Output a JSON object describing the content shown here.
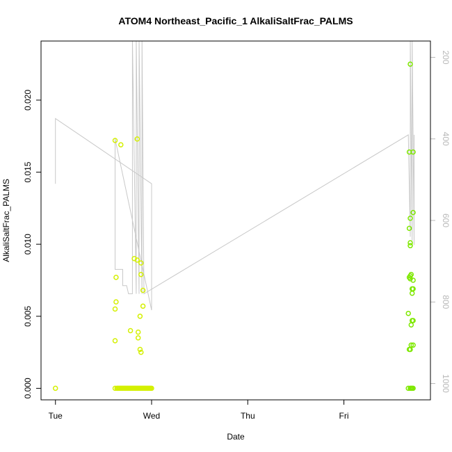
{
  "chart_data": {
    "type": "scatter",
    "title": "ATOM4 Northeast_Pacific_1 AlkaliSaltFrac_PALMS",
    "xlabel": "Date",
    "ylabel": "AlkaliSaltFrac_PALMS",
    "x_ticks": [
      "Tue",
      "Wed",
      "Thu",
      "Fri"
    ],
    "x_tick_days": [
      0,
      1,
      2,
      3
    ],
    "xlim_days": [
      -0.15,
      3.9
    ],
    "ylim": [
      -0.0008,
      0.0241
    ],
    "y_ticks": [
      "0.000",
      "0.005",
      "0.010",
      "0.015",
      "0.020"
    ],
    "y_tick_values": [
      0.0,
      0.005,
      0.01,
      0.015,
      0.02
    ],
    "y2_ticks": [
      "200",
      "400",
      "600",
      "800",
      "1000"
    ],
    "y2_tick_values": [
      200,
      400,
      600,
      800,
      1000
    ],
    "y2lim": [
      1040,
      160
    ],
    "grid": false,
    "colors": {
      "points_early": "#d4f000",
      "points_late": "#7ee800",
      "altitude_line": "#c8c8c8",
      "frame": "#000000"
    },
    "series": [
      {
        "points": [
          [
            0.0,
            0.0
          ],
          [
            0.62,
            0.0172
          ],
          [
            0.62,
            0.0
          ],
          [
            0.62,
            0.0033
          ],
          [
            0.62,
            0.0055
          ],
          [
            0.63,
            0.0077
          ],
          [
            0.63,
            0.006
          ],
          [
            0.64,
            0.0
          ],
          [
            0.65,
            0.0
          ],
          [
            0.66,
            0.0
          ],
          [
            0.67,
            0.0
          ],
          [
            0.68,
            0.0169
          ],
          [
            0.68,
            0.0
          ],
          [
            0.69,
            0.0
          ],
          [
            0.7,
            0.0
          ],
          [
            0.71,
            0.0
          ],
          [
            0.72,
            0.0
          ],
          [
            0.73,
            0.0
          ],
          [
            0.74,
            0.0
          ],
          [
            0.75,
            0.0
          ],
          [
            0.76,
            0.0
          ],
          [
            0.77,
            0.0
          ],
          [
            0.78,
            0.004
          ],
          [
            0.78,
            0.0
          ],
          [
            0.79,
            0.0
          ],
          [
            0.8,
            0.0
          ],
          [
            0.81,
            0.0
          ],
          [
            0.82,
            0.009
          ],
          [
            0.82,
            0.0
          ],
          [
            0.83,
            0.0
          ],
          [
            0.84,
            0.0
          ],
          [
            0.85,
            0.0173
          ],
          [
            0.85,
            0.0089
          ],
          [
            0.85,
            0.0
          ],
          [
            0.86,
            0.0039
          ],
          [
            0.86,
            0.0035
          ],
          [
            0.86,
            0.0
          ],
          [
            0.87,
            0.0
          ],
          [
            0.88,
            0.005
          ],
          [
            0.88,
            0.0027
          ],
          [
            0.88,
            0.0
          ],
          [
            0.89,
            0.0087
          ],
          [
            0.89,
            0.0079
          ],
          [
            0.89,
            0.0025
          ],
          [
            0.89,
            0.0
          ],
          [
            0.9,
            0.0
          ],
          [
            0.91,
            0.0068
          ],
          [
            0.91,
            0.0057
          ],
          [
            0.91,
            0.0
          ],
          [
            0.92,
            0.0
          ],
          [
            0.93,
            0.0
          ],
          [
            0.94,
            0.0
          ],
          [
            0.95,
            0.0
          ],
          [
            0.96,
            0.0
          ],
          [
            0.97,
            0.0
          ],
          [
            0.98,
            0.0
          ],
          [
            0.99,
            0.0
          ],
          [
            1.0,
            0.0
          ],
          [
            3.67,
            0.0
          ],
          [
            3.67,
            0.0052
          ],
          [
            3.68,
            0.0077
          ],
          [
            3.68,
            0.0027
          ],
          [
            3.68,
            0.0164
          ],
          [
            3.68,
            0.0111
          ],
          [
            3.69,
            0.0225
          ],
          [
            3.69,
            0.0118
          ],
          [
            3.69,
            0.0101
          ],
          [
            3.69,
            0.0099
          ],
          [
            3.69,
            0.0078
          ],
          [
            3.69,
            0.0076
          ],
          [
            3.69,
            0.0027
          ],
          [
            3.69,
            0.0
          ],
          [
            3.7,
            0.0079
          ],
          [
            3.7,
            0.003
          ],
          [
            3.7,
            0.0044
          ],
          [
            3.7,
            0.0
          ],
          [
            3.71,
            0.0069
          ],
          [
            3.71,
            0.0066
          ],
          [
            3.71,
            0.0047
          ],
          [
            3.71,
            0.0
          ],
          [
            3.72,
            0.0164
          ],
          [
            3.72,
            0.0122
          ],
          [
            3.72,
            0.0075
          ],
          [
            3.72,
            0.0069
          ],
          [
            3.72,
            0.0047
          ],
          [
            3.72,
            0.003
          ],
          [
            3.72,
            0.0
          ]
        ]
      },
      {
        "axis": "right",
        "points": [
          [
            0.0,
            510
          ],
          [
            0.0,
            350
          ],
          [
            1.0,
            510
          ],
          [
            1.0,
            820
          ],
          [
            0.62,
            400
          ],
          [
            0.62,
            720
          ],
          [
            0.7,
            720
          ],
          [
            0.7,
            760
          ],
          [
            0.74,
            760
          ],
          [
            0.76,
            780
          ],
          [
            0.8,
            780
          ],
          [
            0.8,
            150
          ],
          [
            0.84,
            780
          ],
          [
            0.84,
            150
          ],
          [
            0.87,
            780
          ],
          [
            0.87,
            150
          ],
          [
            0.9,
            780
          ],
          [
            0.9,
            150
          ],
          [
            0.92,
            780
          ],
          [
            3.67,
            390
          ],
          [
            3.69,
            640
          ],
          [
            3.69,
            150
          ],
          [
            3.71,
            650
          ],
          [
            3.71,
            150
          ],
          [
            3.73,
            660
          ],
          [
            3.73,
            390
          ]
        ]
      }
    ]
  }
}
